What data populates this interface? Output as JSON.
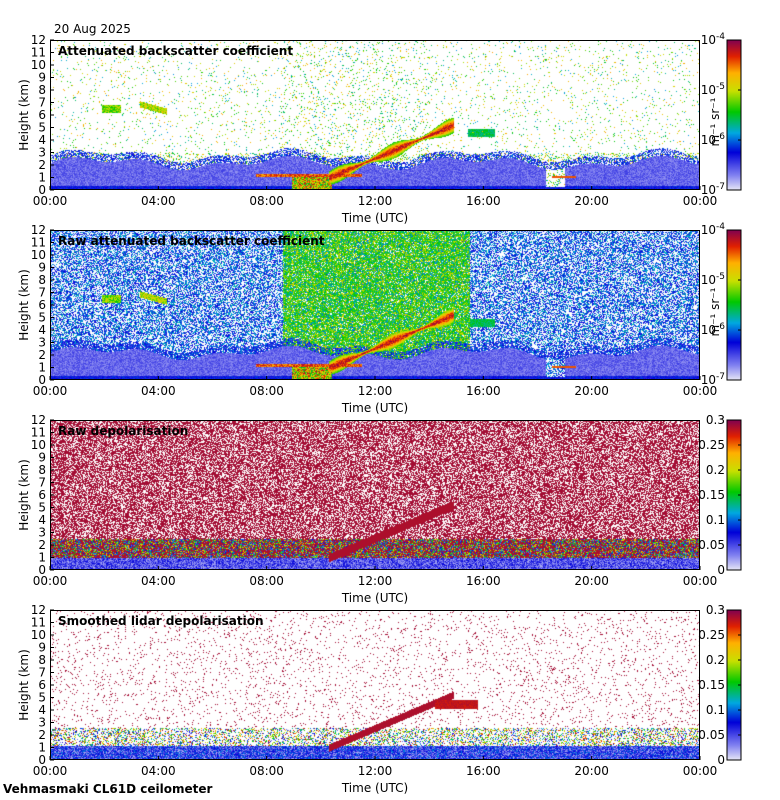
{
  "date": "20 Aug 2025",
  "footer": "Vehmasmaki CL61D ceilometer",
  "chart_data": [
    {
      "type": "heatmap",
      "title": "Attenuated backscatter coefficient",
      "xlabel": "Time (UTC)",
      "ylabel": "Height (km)",
      "x_ticks": [
        "00:00",
        "04:00",
        "08:00",
        "12:00",
        "16:00",
        "20:00",
        "00:00"
      ],
      "y_ticks": [
        "0",
        "1",
        "2",
        "3",
        "4",
        "5",
        "6",
        "7",
        "8",
        "9",
        "10",
        "11",
        "12"
      ],
      "x_range_hours": [
        0,
        24
      ],
      "y_range_km": [
        0,
        12
      ],
      "colorbar": {
        "scale": "log",
        "range": [
          1e-07,
          0.0001
        ],
        "unit_label": "m⁻¹ sr⁻¹",
        "ticks": [
          {
            "base": "10",
            "exp": "-4",
            "value": 0.0001
          },
          {
            "base": "10",
            "exp": "-5",
            "value": 1e-05
          },
          {
            "base": "10",
            "exp": "-6",
            "value": 1e-06
          },
          {
            "base": "10",
            "exp": "-7",
            "value": 1e-07
          }
        ]
      },
      "features": "cloud layer rising from ~1 km near 10:30 to ~5 km near 14:30, boundary layer 0–2.5 km, sparse noise aloft"
    },
    {
      "type": "heatmap",
      "title": "Raw attenuated backscatter coefficient",
      "xlabel": "Time (UTC)",
      "ylabel": "Height (km)",
      "x_ticks": [
        "00:00",
        "04:00",
        "08:00",
        "12:00",
        "16:00",
        "20:00",
        "00:00"
      ],
      "y_ticks": [
        "0",
        "1",
        "2",
        "3",
        "4",
        "5",
        "6",
        "7",
        "8",
        "9",
        "10",
        "11",
        "12"
      ],
      "x_range_hours": [
        0,
        24
      ],
      "y_range_km": [
        0,
        12
      ],
      "colorbar": {
        "scale": "log",
        "range": [
          1e-07,
          0.0001
        ],
        "unit_label": "m⁻¹ sr⁻¹",
        "ticks": [
          {
            "base": "10",
            "exp": "-4",
            "value": 0.0001
          },
          {
            "base": "10",
            "exp": "-5",
            "value": 1e-05
          },
          {
            "base": "10",
            "exp": "-6",
            "value": 1e-06
          },
          {
            "base": "10",
            "exp": "-7",
            "value": 1e-07
          }
        ]
      }
    },
    {
      "type": "heatmap",
      "title": "Raw depolarisation",
      "xlabel": "Time (UTC)",
      "ylabel": "Height (km)",
      "x_ticks": [
        "00:00",
        "04:00",
        "08:00",
        "12:00",
        "16:00",
        "20:00",
        "00:00"
      ],
      "y_ticks": [
        "0",
        "1",
        "2",
        "3",
        "4",
        "5",
        "6",
        "7",
        "8",
        "9",
        "10",
        "11",
        "12"
      ],
      "x_range_hours": [
        0,
        24
      ],
      "y_range_km": [
        0,
        12
      ],
      "colorbar": {
        "scale": "linear",
        "range": [
          0,
          0.3
        ],
        "ticks": [
          {
            "label": "0.3",
            "value": 0.3
          },
          {
            "label": "0.25",
            "value": 0.25
          },
          {
            "label": "0.2",
            "value": 0.2
          },
          {
            "label": "0.15",
            "value": 0.15
          },
          {
            "label": "0.1",
            "value": 0.1
          },
          {
            "label": "0.05",
            "value": 0.05
          },
          {
            "label": "0",
            "value": 0
          }
        ]
      }
    },
    {
      "type": "heatmap",
      "title": "Smoothed lidar depolarisation",
      "xlabel": "Time (UTC)",
      "ylabel": "Height (km)",
      "x_ticks": [
        "00:00",
        "04:00",
        "08:00",
        "12:00",
        "16:00",
        "20:00",
        "00:00"
      ],
      "y_ticks": [
        "0",
        "1",
        "2",
        "3",
        "4",
        "5",
        "6",
        "7",
        "8",
        "9",
        "10",
        "11",
        "12"
      ],
      "x_range_hours": [
        0,
        24
      ],
      "y_range_km": [
        0,
        12
      ],
      "colorbar": {
        "scale": "linear",
        "range": [
          0,
          0.3
        ],
        "ticks": [
          {
            "label": "0.3",
            "value": 0.3
          },
          {
            "label": "0.25",
            "value": 0.25
          },
          {
            "label": "0.2",
            "value": 0.2
          },
          {
            "label": "0.15",
            "value": 0.15
          },
          {
            "label": "0.1",
            "value": 0.1
          },
          {
            "label": "0.05",
            "value": 0.05
          },
          {
            "label": "0",
            "value": 0
          }
        ]
      }
    }
  ]
}
